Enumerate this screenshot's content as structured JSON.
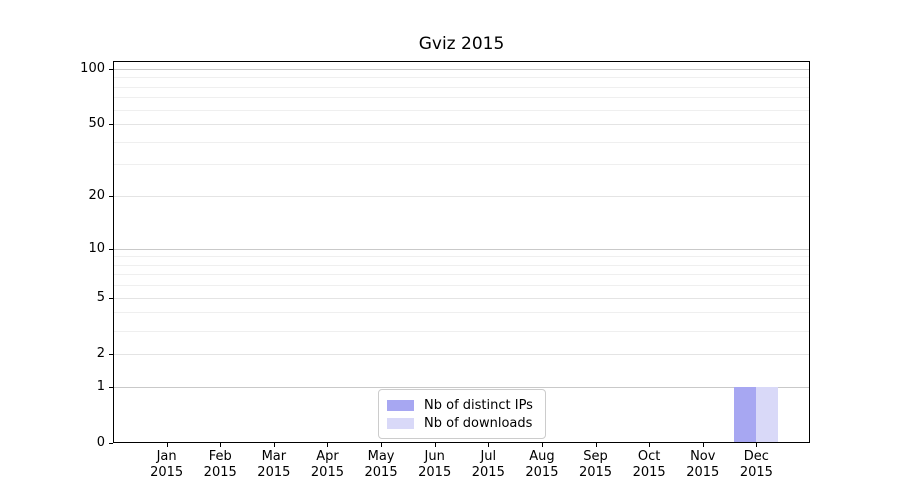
{
  "chart_data": {
    "type": "bar",
    "title": "Gviz 2015",
    "categories": [
      "Jan 2015",
      "Feb 2015",
      "Mar 2015",
      "Apr 2015",
      "May 2015",
      "Jun 2015",
      "Jul 2015",
      "Aug 2015",
      "Sep 2015",
      "Oct 2015",
      "Nov 2015",
      "Dec 2015"
    ],
    "series": [
      {
        "name": "Nb of distinct IPs",
        "color": "#a7a7f2",
        "values": [
          0,
          0,
          0,
          0,
          0,
          0,
          0,
          0,
          0,
          0,
          0,
          1
        ]
      },
      {
        "name": "Nb of downloads",
        "color": "#d9d9f8",
        "values": [
          0,
          0,
          0,
          0,
          0,
          0,
          0,
          0,
          0,
          0,
          0,
          1
        ]
      }
    ],
    "xlabel": "",
    "ylabel": "",
    "y_scale": "log(1+y)",
    "y_major_ticks": [
      0,
      1,
      2,
      5,
      10,
      20,
      50,
      100
    ],
    "y_decade_values": [
      1,
      10,
      100
    ],
    "y_minor_gridlines": [
      3,
      4,
      6,
      7,
      8,
      9,
      30,
      40,
      60,
      70,
      80,
      90
    ],
    "ylim": [
      0,
      110
    ],
    "grid": true,
    "legend_position": "bottom-center"
  },
  "colors": {
    "grid_decade": "#c9c9c9",
    "grid_major": "#e4e4e4",
    "grid_minor": "#efefef",
    "axis": "#000000",
    "legend_border": "#cccccc",
    "background": "#ffffff"
  }
}
